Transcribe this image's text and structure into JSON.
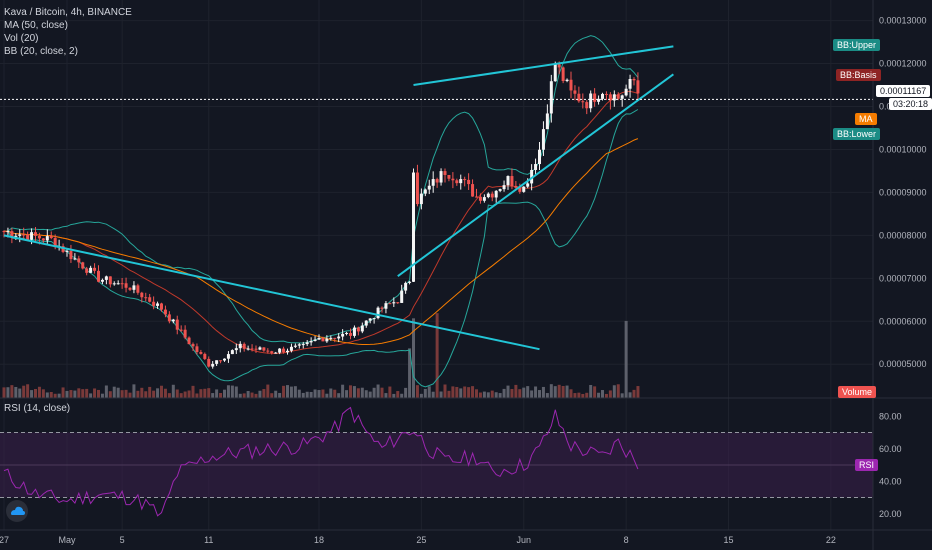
{
  "legend": {
    "symbol": "Kava / Bitcoin, 4h, BINANCE",
    "ma": "MA (50, close)",
    "vol": "Vol (20)",
    "bb": "BB (20, close, 2)",
    "rsi": "RSI (14, close)"
  },
  "badges": {
    "bb_upper": "BB:Upper",
    "bb_basis": "BB:Basis",
    "ma": "MA",
    "bb_lower": "BB:Lower",
    "volume": "Volume",
    "rsi": "RSI",
    "price": "0.00011167",
    "countdown": "03:20:18"
  },
  "colors": {
    "background": "#131722",
    "up_candle": "#f5f5f5",
    "down_candle": "#ef5350",
    "bb_band": "#26a69a",
    "bb_basis": "#c0392b",
    "ma": "#f57c00",
    "trendline": "#22c5d6",
    "rsi_line": "#9c27b0",
    "rsi_band": "#3b1f4a"
  },
  "chart_data": [
    {
      "type": "candlestick",
      "price_axis": [
        "0.00013000",
        "0.00012000",
        "0.00011000",
        "0.00010000",
        "0.00009000",
        "0.00008000",
        "0.00007000",
        "0.00006000",
        "0.00005000"
      ],
      "x_ticks": [
        "27",
        "May",
        "5",
        "11",
        "18",
        "25",
        "Jun",
        "8",
        "15",
        "22"
      ],
      "ylim": [
        4.4e-05,
        0.000132
      ],
      "last_price": 0.00011167,
      "close_anchors": [
        [
          0,
          8.1e-05
        ],
        [
          3,
          7.9e-05
        ],
        [
          6,
          7e-05
        ],
        [
          8,
          6.8e-05
        ],
        [
          10,
          6.3e-05
        ],
        [
          12,
          5.4e-05
        ],
        [
          13,
          5e-05
        ],
        [
          15,
          5.4e-05
        ],
        [
          17,
          5.3e-05
        ],
        [
          19,
          5.4e-05
        ],
        [
          20,
          5.6e-05
        ],
        [
          22,
          5.7e-05
        ],
        [
          23,
          6e-05
        ],
        [
          24,
          6.3e-05
        ],
        [
          25,
          6.5e-05
        ],
        [
          25.8,
          7e-05
        ],
        [
          26,
          9.6e-05
        ],
        [
          26.2,
          8.8e-05
        ],
        [
          28,
          9.5e-05
        ],
        [
          29,
          9.3e-05
        ],
        [
          30,
          8.9e-05
        ],
        [
          31,
          9e-05
        ],
        [
          32,
          9.3e-05
        ],
        [
          33,
          9.1e-05
        ],
        [
          34,
          0.0001
        ],
        [
          35,
          0.00012
        ],
        [
          36,
          0.000113
        ],
        [
          37,
          0.000111
        ],
        [
          38,
          0.000114
        ],
        [
          39,
          0.000112
        ],
        [
          40,
          0.000116
        ],
        [
          40.4,
          0.0001117
        ]
      ],
      "trendlines": [
        {
          "from": [
            0,
            8e-05
          ],
          "to": [
            34,
            5.35e-05
          ]
        },
        {
          "from": [
            25,
            7.05e-05
          ],
          "to": [
            42.5,
            0.0001175
          ]
        },
        {
          "from": [
            26,
            0.000115
          ],
          "to": [
            42.5,
            0.000124
          ]
        }
      ],
      "volume_spikes": [
        25.8,
        26.0,
        27.5,
        39.5
      ]
    },
    {
      "type": "line",
      "name": "RSI",
      "y_ticks": [
        "80.00",
        "60.00",
        "40.00",
        "20.00"
      ],
      "ylim": [
        10,
        90
      ],
      "band": [
        30,
        70
      ],
      "anchors": [
        [
          0,
          45
        ],
        [
          2,
          32
        ],
        [
          4,
          28
        ],
        [
          6,
          32
        ],
        [
          8,
          30
        ],
        [
          9,
          26
        ],
        [
          10,
          18
        ],
        [
          11,
          45
        ],
        [
          13,
          55
        ],
        [
          15,
          58
        ],
        [
          17,
          60
        ],
        [
          19,
          62
        ],
        [
          21,
          72
        ],
        [
          22,
          84
        ],
        [
          23,
          70
        ],
        [
          24,
          60
        ],
        [
          25,
          67
        ],
        [
          26,
          72
        ],
        [
          27,
          60
        ],
        [
          28,
          52
        ],
        [
          30,
          55
        ],
        [
          31,
          45
        ],
        [
          32,
          48
        ],
        [
          33,
          50
        ],
        [
          34,
          60
        ],
        [
          35,
          80
        ],
        [
          36,
          62
        ],
        [
          37,
          58
        ],
        [
          38,
          55
        ],
        [
          39,
          64
        ],
        [
          39.8,
          56
        ],
        [
          40.4,
          48
        ]
      ]
    }
  ]
}
